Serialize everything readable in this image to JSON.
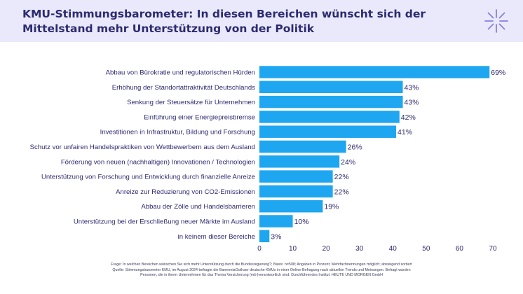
{
  "header": {
    "title": "KMU-Stimmungsbarometer: In diesen Bereichen wünscht sich der Mittelstand mehr Unterstützung von der Politik",
    "logo_icon": "asterisk-burst-icon"
  },
  "chart_data": {
    "type": "bar",
    "orientation": "horizontal",
    "categories": [
      "Abbau von Bürokratie und regulatorischen Hürden",
      "Erhöhung der Standortattraktivität Deutschlands",
      "Senkung der Steuersätze für Unternehmen",
      "Einführung einer Energiepreisbremse",
      "Investitionen in Infrastruktur, Bildung und Forschung",
      "Schutz vor unfairen Handelspraktiken von Wettbewerbern aus dem Ausland",
      "Förderung von neuen (nachhaltigen) Innovationen / Technologien",
      "Unterstützung von Forschung und Entwicklung durch finanzielle Anreize",
      "Anreize zur Reduzierung von CO2-Emissionen",
      "Abbau der Zölle und Handelsbarrieren",
      "Unterstützung bei der Erschließung neuer Märkte im Ausland",
      "in keinem dieser Bereiche"
    ],
    "values": [
      69,
      43,
      43,
      42,
      41,
      26,
      24,
      22,
      22,
      19,
      10,
      3
    ],
    "value_labels": [
      "69%",
      "43%",
      "43%",
      "42%",
      "41%",
      "26%",
      "24%",
      "22%",
      "22%",
      "19%",
      "10%",
      "3%"
    ],
    "xlim": [
      0,
      70
    ],
    "xticks": [
      0,
      10,
      20,
      30,
      40,
      50,
      60,
      70
    ],
    "xtick_labels": [
      "0",
      "10",
      "20",
      "30",
      "40",
      "50",
      "60",
      "70"
    ],
    "bar_color": "#1ea7f0",
    "grid": false
  },
  "footnote": {
    "line1": "Frage: In welchen Bereichen wünschen Sie sich mehr Unterstützung durch die Bundesregierung?; Basis: n=508; Angaben in Prozent; Mehrfachnennungen möglich; absteigend sortiert",
    "line2": "Quelle: Stimmungsbarometer KMU, im August 2024 befragte die BarmeniaGothaer deutsche KMUs in einer Online-Befragung nach aktuellen Trends und Meinungen. Befragt wurden Personen, die in ihrem Unternehmen für das Thema Versicherung (mit-)verantwortlich sind. Durchführendes Institut: HEUTE UND MORGEN GmbH"
  }
}
